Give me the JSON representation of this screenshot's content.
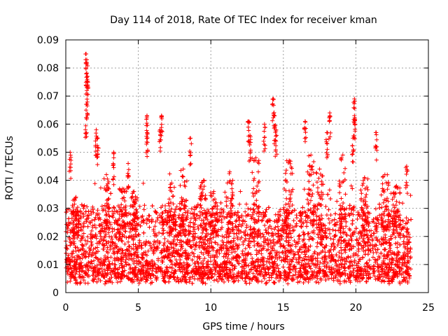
{
  "chart_data": {
    "type": "scatter",
    "title": "Day 114 of 2018, Rate Of TEC Index for receiver kman",
    "xlabel": "GPS time / hours",
    "ylabel": "ROTI / TECUs",
    "xlim": [
      0,
      25
    ],
    "ylim": [
      0,
      0.09
    ],
    "xticks": [
      0,
      5,
      10,
      15,
      20,
      25
    ],
    "xtick_labels": [
      "0",
      "5",
      "10",
      "15",
      "20",
      "25"
    ],
    "yticks": [
      0,
      0.01,
      0.02,
      0.03,
      0.04,
      0.05,
      0.06,
      0.07,
      0.08,
      0.09
    ],
    "ytick_labels": [
      "0",
      "0.01",
      "0.02",
      "0.03",
      "0.04",
      "0.05",
      "0.06",
      "0.07",
      "0.08",
      "0.09"
    ],
    "grid": true,
    "marker": "+",
    "marker_color": "#ff0000",
    "series": [
      {
        "name": "ROTI",
        "x_range": [
          0.0,
          23.8
        ],
        "baseline_typical": [
          0.005,
          0.03
        ],
        "peaks": [
          {
            "x": 0.3,
            "y": 0.05
          },
          {
            "x": 1.4,
            "y": 0.085
          },
          {
            "x": 1.45,
            "y": 0.082
          },
          {
            "x": 1.5,
            "y": 0.077
          },
          {
            "x": 1.45,
            "y": 0.072
          },
          {
            "x": 1.4,
            "y": 0.065
          },
          {
            "x": 2.1,
            "y": 0.058
          },
          {
            "x": 2.2,
            "y": 0.055
          },
          {
            "x": 3.3,
            "y": 0.05
          },
          {
            "x": 4.3,
            "y": 0.046
          },
          {
            "x": 5.6,
            "y": 0.063
          },
          {
            "x": 5.6,
            "y": 0.057
          },
          {
            "x": 6.6,
            "y": 0.063
          },
          {
            "x": 6.5,
            "y": 0.058
          },
          {
            "x": 8.6,
            "y": 0.055
          },
          {
            "x": 12.6,
            "y": 0.061
          },
          {
            "x": 12.7,
            "y": 0.056
          },
          {
            "x": 13.7,
            "y": 0.06
          },
          {
            "x": 14.3,
            "y": 0.069
          },
          {
            "x": 14.4,
            "y": 0.063
          },
          {
            "x": 14.5,
            "y": 0.058
          },
          {
            "x": 16.5,
            "y": 0.061
          },
          {
            "x": 18.2,
            "y": 0.064
          },
          {
            "x": 18.0,
            "y": 0.057
          },
          {
            "x": 19.9,
            "y": 0.069
          },
          {
            "x": 19.9,
            "y": 0.063
          },
          {
            "x": 19.8,
            "y": 0.055
          },
          {
            "x": 21.4,
            "y": 0.057
          },
          {
            "x": 23.5,
            "y": 0.045
          }
        ],
        "secondary_peaks": [
          {
            "x": 0.7,
            "y": 0.034
          },
          {
            "x": 2.8,
            "y": 0.042
          },
          {
            "x": 3.9,
            "y": 0.037
          },
          {
            "x": 4.7,
            "y": 0.036
          },
          {
            "x": 7.3,
            "y": 0.039
          },
          {
            "x": 8.1,
            "y": 0.044
          },
          {
            "x": 9.5,
            "y": 0.04
          },
          {
            "x": 10.2,
            "y": 0.036
          },
          {
            "x": 11.3,
            "y": 0.043
          },
          {
            "x": 13.1,
            "y": 0.048
          },
          {
            "x": 15.4,
            "y": 0.047
          },
          {
            "x": 16.9,
            "y": 0.049
          },
          {
            "x": 17.5,
            "y": 0.044
          },
          {
            "x": 19.1,
            "y": 0.049
          },
          {
            "x": 20.6,
            "y": 0.041
          },
          {
            "x": 22.0,
            "y": 0.042
          },
          {
            "x": 22.8,
            "y": 0.038
          }
        ]
      }
    ]
  }
}
